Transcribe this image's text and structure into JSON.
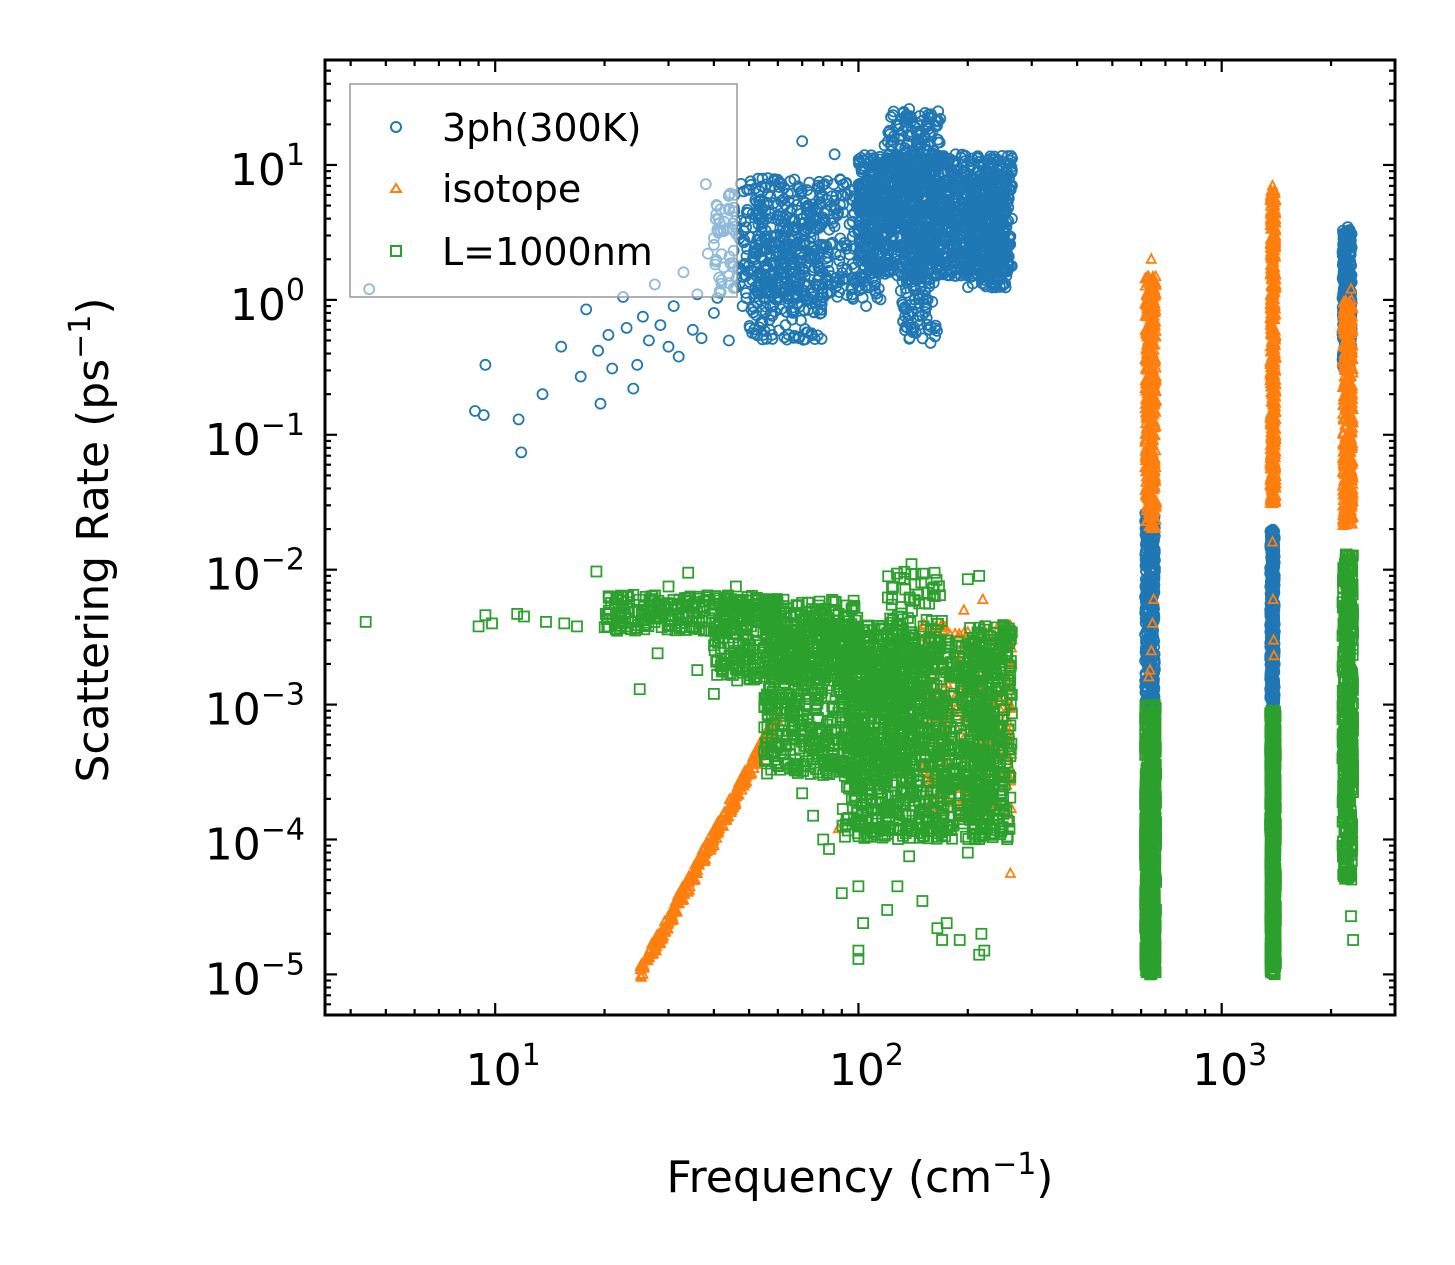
{
  "chart_data": {
    "type": "scatter",
    "title": "",
    "xlabel": "Frequency",
    "xlabel_unit_base": "cm",
    "xlabel_unit_exp": "−1",
    "ylabel": "Scattering Rate",
    "ylabel_unit_base": "ps",
    "ylabel_unit_exp": "−1",
    "xscale": "log",
    "yscale": "log",
    "xlim": [
      3.4,
      3000
    ],
    "ylim": [
      5e-06,
      60
    ],
    "x_ticks": [
      {
        "value": 10,
        "base": "10",
        "exp": "1"
      },
      {
        "value": 100,
        "base": "10",
        "exp": "2"
      },
      {
        "value": 1000,
        "base": "10",
        "exp": "3"
      }
    ],
    "y_ticks": [
      {
        "value": 1e-05,
        "base": "10",
        "exp": "−5"
      },
      {
        "value": 0.0001,
        "base": "10",
        "exp": "−4"
      },
      {
        "value": 0.001,
        "base": "10",
        "exp": "−3"
      },
      {
        "value": 0.01,
        "base": "10",
        "exp": "−2"
      },
      {
        "value": 0.1,
        "base": "10",
        "exp": "−1"
      },
      {
        "value": 1,
        "base": "10",
        "exp": "0"
      },
      {
        "value": 10,
        "base": "10",
        "exp": "1"
      }
    ],
    "legend_position": "top-left",
    "series": [
      {
        "name": "3ph(300K)",
        "color": "#1f77b4",
        "marker": "circle",
        "points": [
          [
            4.5,
            1.2
          ],
          [
            8.8,
            0.15
          ],
          [
            9.3,
            0.14
          ],
          [
            9.4,
            0.33
          ],
          [
            11.6,
            0.13
          ],
          [
            11.8,
            0.074
          ],
          [
            13.5,
            0.2
          ],
          [
            15.2,
            0.45
          ],
          [
            17.2,
            0.27
          ],
          [
            17.8,
            0.85
          ],
          [
            19.2,
            0.42
          ],
          [
            19.5,
            0.17
          ],
          [
            20.5,
            0.55
          ],
          [
            21.0,
            0.31
          ],
          [
            22.5,
            1.05
          ],
          [
            23.0,
            0.62
          ],
          [
            24.0,
            0.22
          ],
          [
            24.6,
            0.33
          ],
          [
            25.5,
            0.75
          ],
          [
            26.5,
            0.5
          ],
          [
            27.5,
            1.3
          ],
          [
            28.5,
            0.65
          ],
          [
            30,
            0.45
          ],
          [
            31,
            0.9
          ],
          [
            32,
            0.38
          ],
          [
            33,
            1.6
          ],
          [
            35,
            0.6
          ],
          [
            36,
            1.1
          ],
          [
            37,
            0.52
          ],
          [
            38,
            7.2
          ],
          [
            38.5,
            2.2
          ],
          [
            40,
            0.8
          ],
          [
            42,
            1.4
          ],
          [
            44,
            0.5
          ],
          [
            46,
            3.1
          ],
          [
            48,
            0.9
          ],
          [
            50,
            1.8
          ],
          [
            52,
            5.5
          ],
          [
            54,
            1.3
          ],
          [
            57,
            0.6
          ],
          [
            60,
            2.2
          ],
          [
            63,
            4.2
          ],
          [
            66,
            0.8
          ],
          [
            70,
            15
          ],
          [
            74,
            3.2
          ],
          [
            78,
            7.5
          ],
          [
            82,
            1.4
          ],
          [
            86,
            12
          ],
          [
            90,
            2.5
          ],
          [
            95,
            6.5
          ],
          [
            100,
            3.2
          ],
          [
            105,
            0.9
          ],
          [
            110,
            9
          ],
          [
            118,
            14
          ],
          [
            125,
            4.5
          ],
          [
            130,
            20
          ],
          [
            138,
            26
          ],
          [
            145,
            3
          ],
          [
            150,
            1.5
          ],
          [
            156,
            0.6
          ],
          [
            158,
            0.48
          ],
          [
            163,
            9
          ],
          [
            168,
            22
          ],
          [
            176,
            5.5
          ],
          [
            185,
            12
          ],
          [
            195,
            3.2
          ],
          [
            205,
            6
          ],
          [
            215,
            2.5
          ],
          [
            222,
            1.3
          ],
          [
            232,
            7
          ],
          [
            246,
            4.5
          ],
          [
            256,
            8
          ],
          [
            262,
            7
          ]
        ],
        "clusters": [
          {
            "x": [
              40,
              115
            ],
            "y": [
              1.0,
              8.0
            ],
            "count": 500
          },
          {
            "x": [
              50,
              80
            ],
            "y": [
              0.5,
              4.0
            ],
            "count": 200
          },
          {
            "x": [
              100,
              265
            ],
            "y": [
              1.5,
              12.0
            ],
            "count": 1200
          },
          {
            "x": [
              120,
              170
            ],
            "y": [
              3.0,
              25.0
            ],
            "count": 250
          },
          {
            "x": [
              130,
              165
            ],
            "y": [
              0.5,
              3.0
            ],
            "count": 120
          },
          {
            "x": [
              200,
              260
            ],
            "y": [
              1.2,
              8.0
            ],
            "count": 250
          },
          {
            "x": [
              615,
              655
            ],
            "y": [
              0.001,
              0.03
            ],
            "count": 350
          },
          {
            "x": [
              1360,
              1400
            ],
            "y": [
              0.001,
              0.02
            ],
            "count": 350
          },
          {
            "x": [
              2150,
              2280
            ],
            "y": [
              0.3,
              3.5
            ],
            "count": 300
          }
        ]
      },
      {
        "name": "isotope",
        "color": "#ff7f0e",
        "marker": "triangle",
        "points": [
          [
            25.5,
            1e-05
          ],
          [
            27,
            1.4e-05
          ],
          [
            30,
            2.4e-05
          ],
          [
            35,
            5e-05
          ],
          [
            40,
            9e-05
          ],
          [
            45,
            0.00018
          ],
          [
            50,
            0.0003
          ],
          [
            55,
            0.0005
          ],
          [
            58,
            0.0007
          ],
          [
            88,
            0.00012
          ],
          [
            195,
            0.005
          ],
          [
            220,
            0.006
          ],
          [
            262,
            0.0005
          ],
          [
            262,
            0.00028
          ],
          [
            262,
            5.6e-05
          ],
          [
            630,
            0.0016
          ],
          [
            635,
            0.0018
          ],
          [
            640,
            0.0025
          ],
          [
            645,
            0.004
          ],
          [
            650,
            0.006
          ],
          [
            640,
            2.0
          ],
          [
            1380,
            0.016
          ],
          [
            1385,
            0.006
          ],
          [
            1390,
            0.003
          ],
          [
            1392,
            0.0023
          ],
          [
            1380,
            7.0
          ],
          [
            2290,
            0.00015
          ],
          [
            2300,
            0.00011
          ],
          [
            2280,
            0.013
          ],
          [
            2270,
            1.2
          ]
        ],
        "clusters": [
          {
            "curve": true,
            "x": [
              25,
              60
            ],
            "y": [
              1e-05,
              0.0008
            ],
            "count": 300
          },
          {
            "x": [
              150,
              265
            ],
            "y": [
              0.00015,
              0.004
            ],
            "count": 300
          },
          {
            "x": [
              615,
              660
            ],
            "y": [
              0.02,
              1.5
            ],
            "count": 450
          },
          {
            "x": [
              1360,
              1410
            ],
            "y": [
              0.03,
              6.5
            ],
            "count": 550
          },
          {
            "x": [
              2150,
              2300
            ],
            "y": [
              0.02,
              1.0
            ],
            "count": 400
          }
        ]
      },
      {
        "name": "L=1000nm",
        "color": "#2ca02c",
        "marker": "square",
        "points": [
          [
            4.4,
            0.0041
          ],
          [
            9.0,
            0.0038
          ],
          [
            9.4,
            0.0046
          ],
          [
            9.8,
            0.004
          ],
          [
            11.5,
            0.0047
          ],
          [
            12,
            0.0045
          ],
          [
            13.8,
            0.0041
          ],
          [
            15.5,
            0.004
          ],
          [
            16.8,
            0.0038
          ],
          [
            19,
            0.0097
          ],
          [
            22,
            0.0045
          ],
          [
            24,
            0.0065
          ],
          [
            25,
            0.0013
          ],
          [
            28,
            0.0024
          ],
          [
            30,
            0.0075
          ],
          [
            34,
            0.0095
          ],
          [
            36,
            0.0018
          ],
          [
            40,
            0.0012
          ],
          [
            46,
            0.0075
          ],
          [
            55,
            0.00045
          ],
          [
            60,
            0.00035
          ],
          [
            70,
            0.00022
          ],
          [
            75,
            0.00015
          ],
          [
            80,
            0.0001
          ],
          [
            83,
            8.5e-05
          ],
          [
            90,
            4e-05
          ],
          [
            100,
            4.5e-05
          ],
          [
            103,
            2.4e-05
          ],
          [
            100,
            1.5e-05
          ],
          [
            100,
            1.3e-05
          ],
          [
            120,
            3e-05
          ],
          [
            128,
            4.5e-05
          ],
          [
            138,
            7.5e-05
          ],
          [
            150,
            3.5e-05
          ],
          [
            165,
            2.2e-05
          ],
          [
            170,
            1.8e-05
          ],
          [
            175,
            2.4e-05
          ],
          [
            190,
            1.8e-05
          ],
          [
            200,
            8e-05
          ],
          [
            215,
            1.4e-05
          ],
          [
            218,
            2e-05
          ],
          [
            222,
            1.5e-05
          ],
          [
            215,
            0.009
          ],
          [
            200,
            0.0085
          ],
          [
            140,
            0.011
          ],
          [
            262,
            0.0007
          ],
          [
            2270,
            2.7e-05
          ],
          [
            2300,
            1.8e-05
          ],
          [
            2260,
            0.00014
          ],
          [
            2290,
            0.0008
          ]
        ],
        "clusters": [
          {
            "x": [
              20,
              60
            ],
            "y": [
              0.0035,
              0.0065
            ],
            "count": 250
          },
          {
            "x": [
              40,
              100
            ],
            "y": [
              0.0015,
              0.006
            ],
            "count": 400
          },
          {
            "x": [
              55,
              140
            ],
            "y": [
              0.0003,
              0.004
            ],
            "count": 800
          },
          {
            "x": [
              90,
              230
            ],
            "y": [
              0.0001,
              0.003
            ],
            "count": 1000
          },
          {
            "x": [
              120,
              170
            ],
            "y": [
              0.0008,
              0.01
            ],
            "count": 150
          },
          {
            "x": [
              200,
              265
            ],
            "y": [
              0.0001,
              0.004
            ],
            "count": 350
          },
          {
            "x": [
              615,
              660
            ],
            "y": [
              1e-05,
              0.001
            ],
            "count": 600
          },
          {
            "x": [
              1360,
              1410
            ],
            "y": [
              1e-05,
              0.0009
            ],
            "count": 650
          },
          {
            "x": [
              2150,
              2300
            ],
            "y": [
              5e-05,
              0.013
            ],
            "count": 500
          }
        ]
      }
    ]
  }
}
